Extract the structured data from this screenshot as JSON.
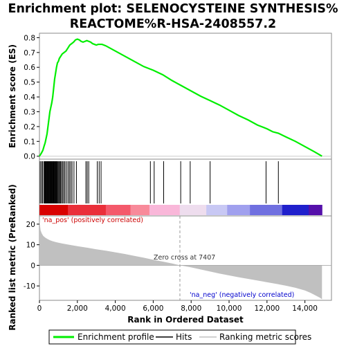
{
  "chart_data": {
    "type": "line",
    "title_lines": [
      "Enrichment plot: SELENOCYSTEINE SYNTHESIS%",
      "REACTOME%R-HSA-2408557.2"
    ],
    "top_panel": {
      "ylabel": "Enrichment score (ES)",
      "ylim": [
        -0.02,
        0.83
      ],
      "yticks": [
        0.0,
        0.1,
        0.2,
        0.3,
        0.4,
        0.5,
        0.6,
        0.7,
        0.8
      ],
      "ytick_labels": [
        "0.0",
        "0.1",
        "0.2",
        "0.3",
        "0.4",
        "0.5",
        "0.6",
        "0.7",
        "0.8"
      ],
      "series": [
        {
          "name": "Enrichment profile",
          "color": "#00ee00",
          "x": [
            0,
            50,
            100,
            180,
            250,
            300,
            350,
            400,
            450,
            500,
            550,
            600,
            650,
            700,
            750,
            800,
            850,
            900,
            950,
            1000,
            1050,
            1100,
            1150,
            1200,
            1300,
            1400,
            1500,
            1600,
            1700,
            1800,
            1900,
            2000,
            2100,
            2200,
            2300,
            2400,
            2500,
            2600,
            2700,
            2800,
            2900,
            3000,
            3100,
            3200,
            3300,
            3500,
            4000,
            4500,
            5000,
            5500,
            5800,
            6000,
            6500,
            7000,
            7500,
            8000,
            8500,
            9000,
            9500,
            10000,
            10500,
            11000,
            11500,
            12000,
            12300,
            12600,
            13000,
            13500,
            14000,
            14500,
            14900
          ],
          "y": [
            0.0,
            0.01,
            0.02,
            0.04,
            0.07,
            0.09,
            0.12,
            0.15,
            0.2,
            0.25,
            0.3,
            0.33,
            0.36,
            0.4,
            0.46,
            0.52,
            0.56,
            0.6,
            0.63,
            0.64,
            0.66,
            0.67,
            0.68,
            0.69,
            0.7,
            0.71,
            0.73,
            0.75,
            0.76,
            0.77,
            0.785,
            0.79,
            0.785,
            0.775,
            0.77,
            0.775,
            0.78,
            0.775,
            0.77,
            0.76,
            0.755,
            0.75,
            0.755,
            0.755,
            0.755,
            0.745,
            0.71,
            0.675,
            0.64,
            0.605,
            0.59,
            0.58,
            0.55,
            0.51,
            0.475,
            0.44,
            0.405,
            0.375,
            0.345,
            0.31,
            0.275,
            0.245,
            0.21,
            0.185,
            0.165,
            0.155,
            0.13,
            0.1,
            0.065,
            0.03,
            0.0
          ]
        }
      ]
    },
    "hits": {
      "name": "Hits",
      "positions": [
        40,
        110,
        160,
        230,
        270,
        300,
        330,
        360,
        390,
        410,
        440,
        470,
        500,
        520,
        550,
        580,
        600,
        630,
        650,
        680,
        700,
        730,
        760,
        790,
        820,
        850,
        880,
        910,
        950,
        990,
        1030,
        1080,
        1120,
        1170,
        1230,
        1290,
        1350,
        1430,
        1510,
        1580,
        1650,
        1720,
        1820,
        1950,
        2450,
        2520,
        2600,
        3050,
        3150,
        3250,
        5850,
        6050,
        6550,
        7450,
        7950,
        9000,
        11950,
        12600
      ]
    },
    "colorbar": {
      "stops": [
        {
          "x": 0,
          "color": "#d90000"
        },
        {
          "x": 1500,
          "color": "#ea2f3a"
        },
        {
          "x": 3500,
          "color": "#f4596b"
        },
        {
          "x": 4800,
          "color": "#f88a9a"
        },
        {
          "x": 5800,
          "color": "#f9b7d9"
        },
        {
          "x": 7400,
          "color": "#eeddee"
        },
        {
          "x": 8800,
          "color": "#c8c8f4"
        },
        {
          "x": 9900,
          "color": "#a0a0ee"
        },
        {
          "x": 11100,
          "color": "#7070e0"
        },
        {
          "x": 12800,
          "color": "#2020cc"
        },
        {
          "x": 14200,
          "color": "#5510aa"
        },
        {
          "x": 14900,
          "color": "#5510aa"
        }
      ]
    },
    "bottom_panel": {
      "ylabel": "Ranked list metric (PreRanked)",
      "xlabel": "Rank in Ordered Dataset",
      "ylim": [
        -17,
        24
      ],
      "yticks": [
        -10,
        0,
        10,
        20
      ],
      "ytick_labels": [
        "-10",
        "0",
        "10",
        "20"
      ],
      "xlim": [
        0,
        15400
      ],
      "xticks": [
        0,
        2000,
        4000,
        6000,
        8000,
        10000,
        12000,
        14000
      ],
      "xtick_labels": [
        "0",
        "2,000",
        "4,000",
        "6,000",
        "8,000",
        "10,000",
        "12,000",
        "14,000"
      ],
      "metric": {
        "name": "Ranking metric scores",
        "color": "#c0c0c0",
        "x": [
          0,
          20,
          60,
          120,
          200,
          300,
          400,
          550,
          700,
          900,
          1200,
          1500,
          2000,
          2500,
          3000,
          3500,
          4000,
          4500,
          5000,
          5500,
          6000,
          6500,
          7000,
          7407,
          8000,
          8500,
          9000,
          9500,
          10000,
          10500,
          11000,
          11500,
          12000,
          12500,
          13000,
          13500,
          14000,
          14300,
          14600,
          14800,
          14900
        ],
        "y": [
          23,
          20,
          17,
          15.5,
          14.3,
          13.5,
          12.9,
          12.2,
          11.7,
          11.2,
          10.6,
          10.1,
          9.3,
          8.6,
          7.8,
          7.1,
          6.3,
          5.5,
          4.6,
          3.7,
          2.7,
          1.8,
          0.9,
          0,
          -1.0,
          -2.0,
          -3.0,
          -4.0,
          -4.9,
          -5.8,
          -6.6,
          -7.4,
          -8.2,
          -9.0,
          -9.9,
          -10.9,
          -12.2,
          -13.4,
          -14.8,
          -15.8,
          -16.5
        ]
      },
      "zero_cross": {
        "x": 7407,
        "label": "Zero cross at 7407"
      },
      "pos_label": "'na_pos' (positively correlated)",
      "neg_label": "'na_neg' (negatively correlated)"
    },
    "legend": {
      "position": "bottom",
      "items": [
        {
          "label": "Enrichment profile",
          "color": "#00ee00"
        },
        {
          "label": "Hits",
          "color": "#000000"
        },
        {
          "label": "Ranking metric scores",
          "color": "#c0c0c0"
        }
      ]
    },
    "colors": {
      "pos_label": "#cc0000",
      "neg_label": "#0000cc",
      "zero_line": "#999999"
    }
  }
}
